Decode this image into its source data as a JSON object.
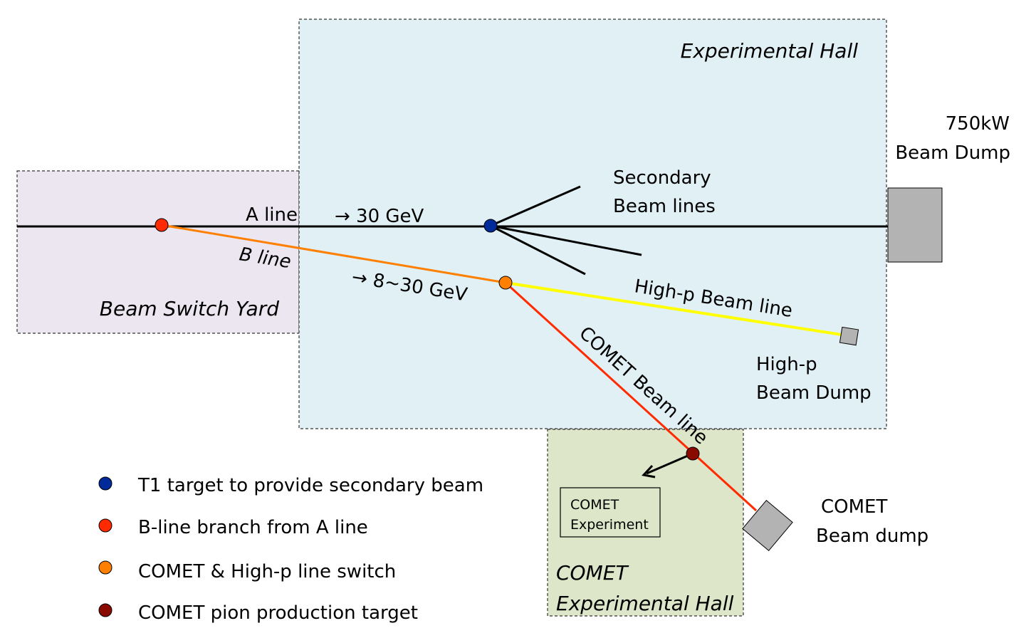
{
  "regions": {
    "experimental_hall": "Experimental Hall",
    "beam_switch_yard": "Beam Switch Yard",
    "comet_hall_line1": "COMET",
    "comet_hall_line2": "Experimental Hall"
  },
  "labels": {
    "a_line": "A line",
    "b_line": "B line",
    "a_energy": "→ 30 GeV",
    "b_energy": "→ 8~30 GeV",
    "secondary_line1": "Secondary",
    "secondary_line2": "Beam lines",
    "highp_beam_line": "High-p Beam line",
    "highp_dump_line1": "High-p",
    "highp_dump_line2": "Beam Dump",
    "main_dump_line1": "750kW",
    "main_dump_line2": "Beam Dump",
    "comet_beam_line": "COMET Beam line",
    "comet_experiment_line1": "COMET",
    "comet_experiment_line2": "Experiment",
    "comet_dump_line1": "COMET",
    "comet_dump_line2": "Beam dump"
  },
  "legend": [
    {
      "label": "T1 target to provide secondary beam",
      "color": "#002a9a"
    },
    {
      "label": "B-line branch from A line",
      "color": "#ff2a00"
    },
    {
      "label": "COMET & High-p line switch",
      "color": "#ff8000"
    },
    {
      "label": "COMET pion production target",
      "color": "#8b0a00"
    }
  ],
  "colors": {
    "switch_yard": "#ebe6ef",
    "experimental_hall": "#e0f0f5",
    "comet_hall": "#dde6c8",
    "b_line": "#ff8000",
    "highp_line": "#ffff00",
    "comet_line": "#ff2a00",
    "dump": "#b3b3b3"
  }
}
